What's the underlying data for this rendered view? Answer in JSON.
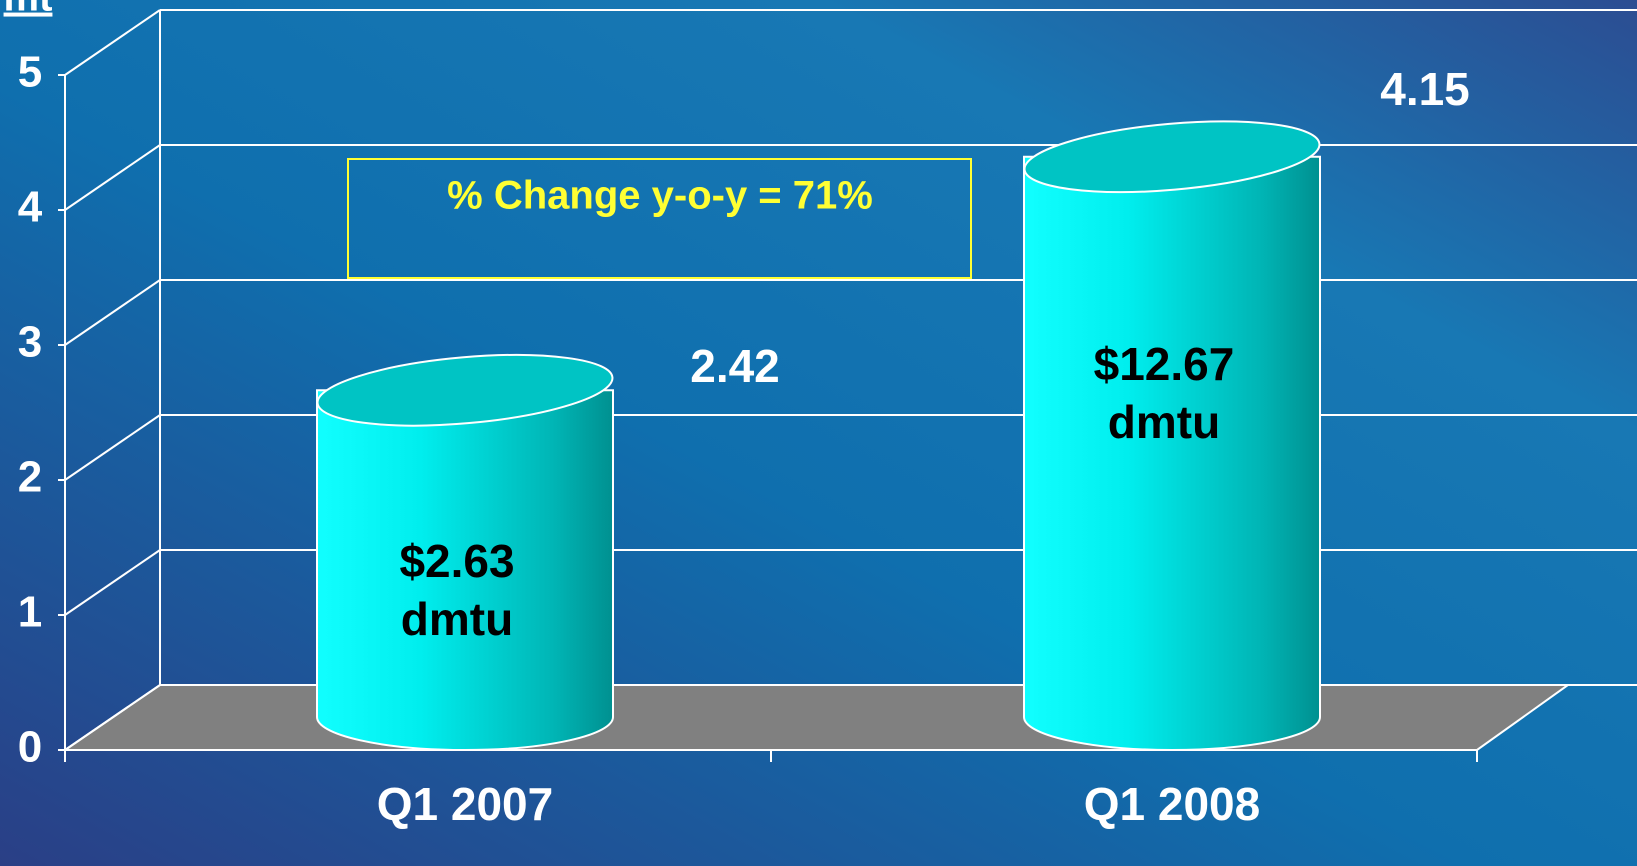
{
  "chart_data": {
    "type": "bar",
    "ylabel": "mt",
    "categories": [
      "Q1 2007",
      "Q1 2008"
    ],
    "values": [
      2.42,
      4.15
    ],
    "color": "#00e5e5",
    "ylim": [
      0,
      5
    ],
    "yticks": [
      0,
      1,
      2,
      3,
      4,
      5
    ],
    "grid": true,
    "annotations": [
      {
        "text": "% Change y-o-y = 71%",
        "color": "#ffff33"
      },
      {
        "lines": [
          "$2.63",
          "dmtu"
        ]
      },
      {
        "lines": [
          "$12.67",
          "dmtu"
        ]
      }
    ]
  }
}
